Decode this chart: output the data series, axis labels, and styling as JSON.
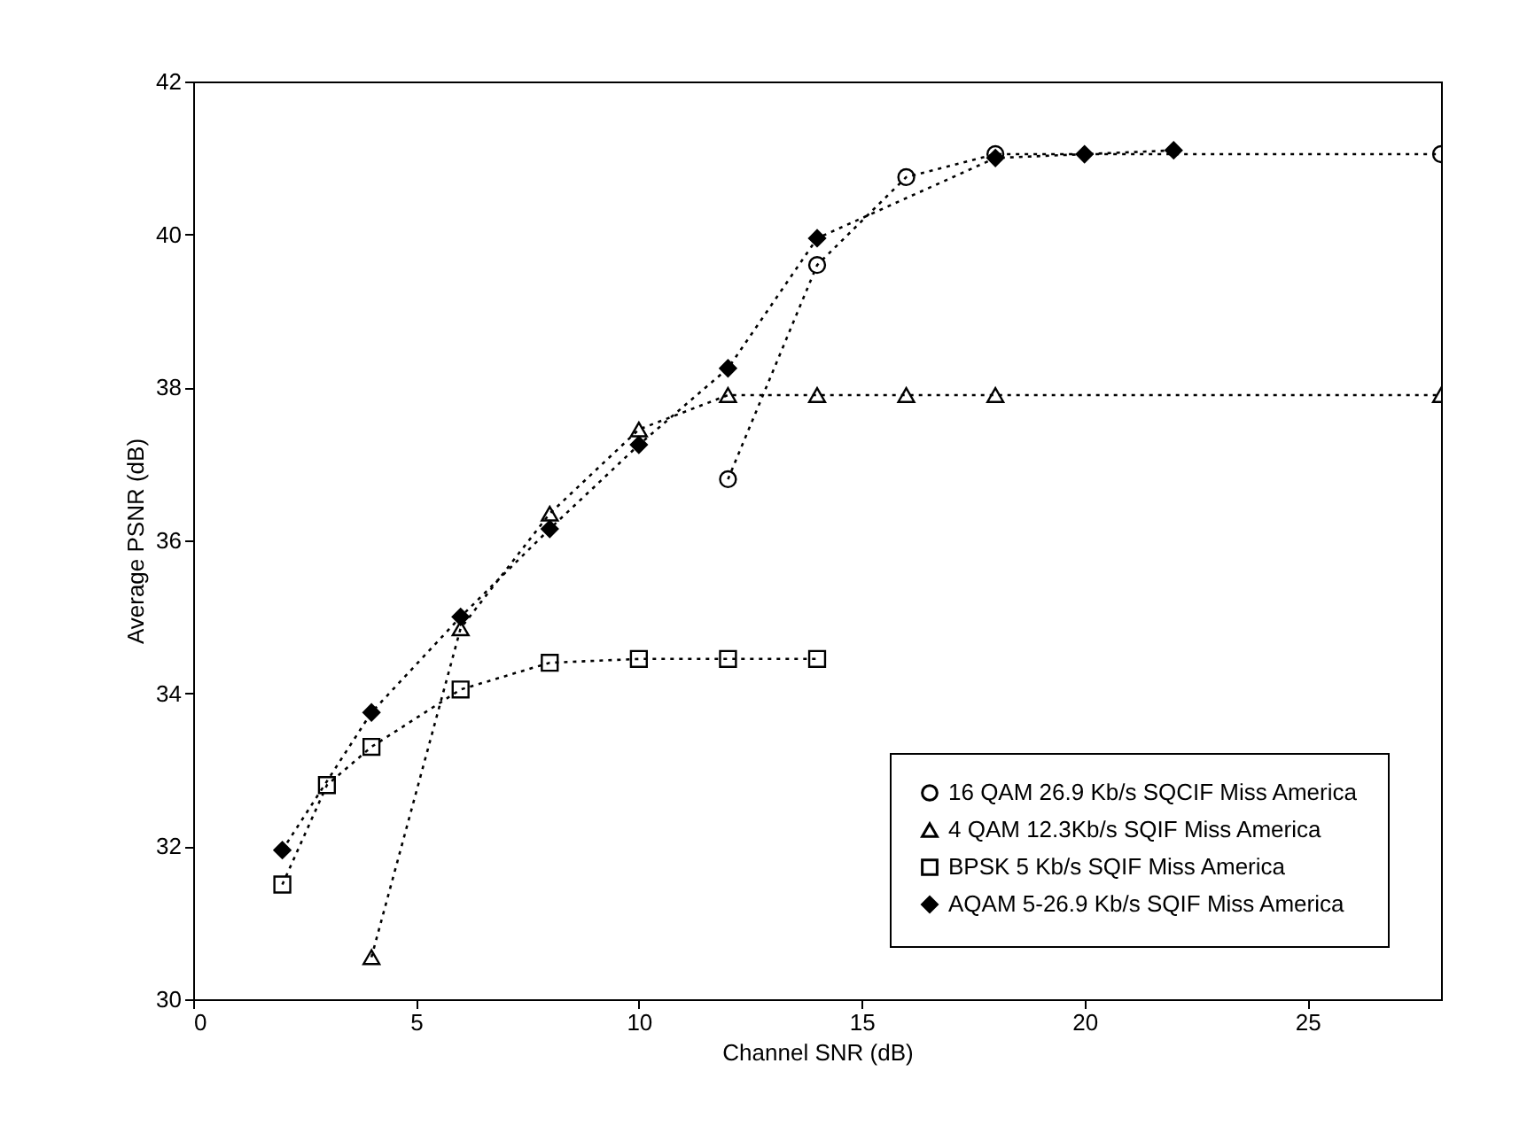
{
  "chart_data": {
    "type": "line",
    "xlabel": "Channel SNR (dB)",
    "ylabel": "Average PSNR (dB)",
    "xlim": [
      0,
      28
    ],
    "xticks": [
      0,
      5,
      10,
      15,
      20,
      25
    ],
    "ylim": [
      30,
      42
    ],
    "yticks": [
      30,
      32,
      34,
      36,
      38,
      40,
      42
    ],
    "grid": false,
    "legend": "bottom right",
    "line_style": "dotted",
    "series": [
      {
        "name": "16 QAM 26.9 Kb/s SQCIF Miss America",
        "color": "#000000",
        "marker": "circle",
        "x": [
          12,
          14,
          16,
          18,
          28
        ],
        "values": [
          36.8,
          39.6,
          40.75,
          41.05,
          41.05
        ]
      },
      {
        "name": "4 QAM 12.3Kb/s SQIF Miss America",
        "color": "#000000",
        "marker": "triangle",
        "x": [
          4,
          6,
          8,
          10,
          12,
          14,
          16,
          18,
          28
        ],
        "values": [
          30.55,
          34.85,
          36.35,
          37.45,
          37.9,
          37.9,
          37.9,
          37.9,
          37.9
        ]
      },
      {
        "name": "BPSK 5 Kb/s SQIF Miss America",
        "color": "#000000",
        "marker": "square",
        "x": [
          2,
          3,
          4,
          6,
          8,
          10,
          12,
          14
        ],
        "values": [
          31.5,
          32.8,
          33.3,
          34.05,
          34.4,
          34.45,
          34.45,
          34.45
        ]
      },
      {
        "name": "AQAM 5-26.9 Kb/s SQIF Miss America",
        "color": "#000000",
        "marker": "diamond",
        "x": [
          2,
          4,
          6,
          8,
          10,
          12,
          14,
          18,
          20,
          22
        ],
        "values": [
          31.95,
          33.75,
          35.0,
          36.15,
          37.25,
          38.25,
          39.95,
          41.0,
          41.05,
          41.1
        ]
      }
    ]
  }
}
